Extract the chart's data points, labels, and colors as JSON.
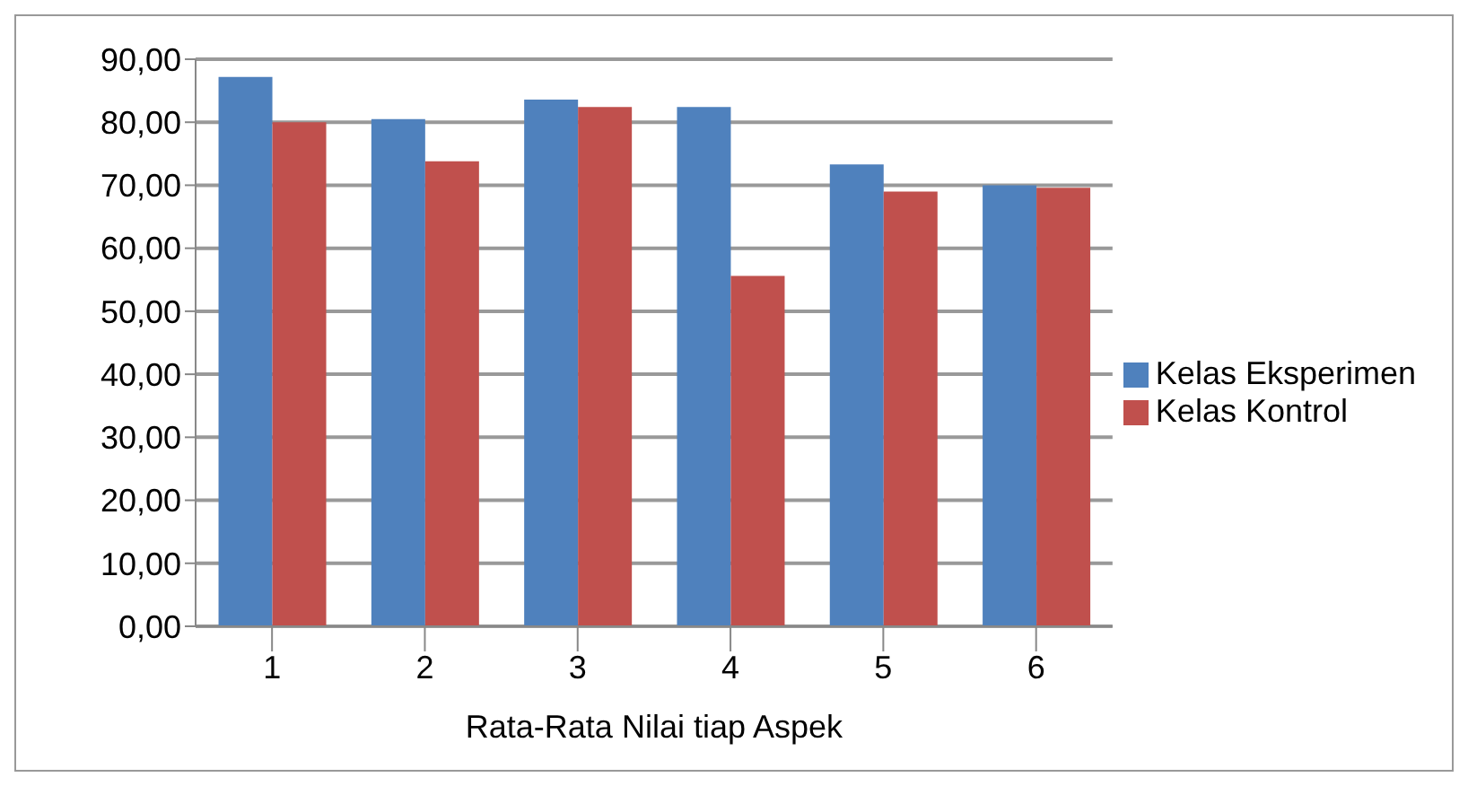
{
  "chart_data": {
    "type": "bar",
    "xlabel": "Rata-Rata Nilai tiap Aspek",
    "categories": [
      "1",
      "2",
      "3",
      "4",
      "5",
      "6"
    ],
    "series": [
      {
        "name": "Kelas Eksperimen",
        "color": "#4f81bd",
        "values": [
          87.2,
          80.5,
          83.6,
          82.4,
          73.3,
          70.0
        ]
      },
      {
        "name": "Kelas Kontrol",
        "color": "#c0504d",
        "values": [
          80.0,
          73.8,
          82.4,
          55.6,
          69.0,
          69.6
        ]
      }
    ],
    "ylim": [
      0,
      90
    ],
    "yticks": [
      {
        "value": 0,
        "label": "0,00"
      },
      {
        "value": 10,
        "label": "10,00"
      },
      {
        "value": 20,
        "label": "20,00"
      },
      {
        "value": 30,
        "label": "30,00"
      },
      {
        "value": 40,
        "label": "40,00"
      },
      {
        "value": 50,
        "label": "50,00"
      },
      {
        "value": 60,
        "label": "60,00"
      },
      {
        "value": 70,
        "label": "70,00"
      },
      {
        "value": 80,
        "label": "80,00"
      },
      {
        "value": 90,
        "label": "90,00"
      }
    ],
    "grid": "y",
    "legend": "right"
  }
}
